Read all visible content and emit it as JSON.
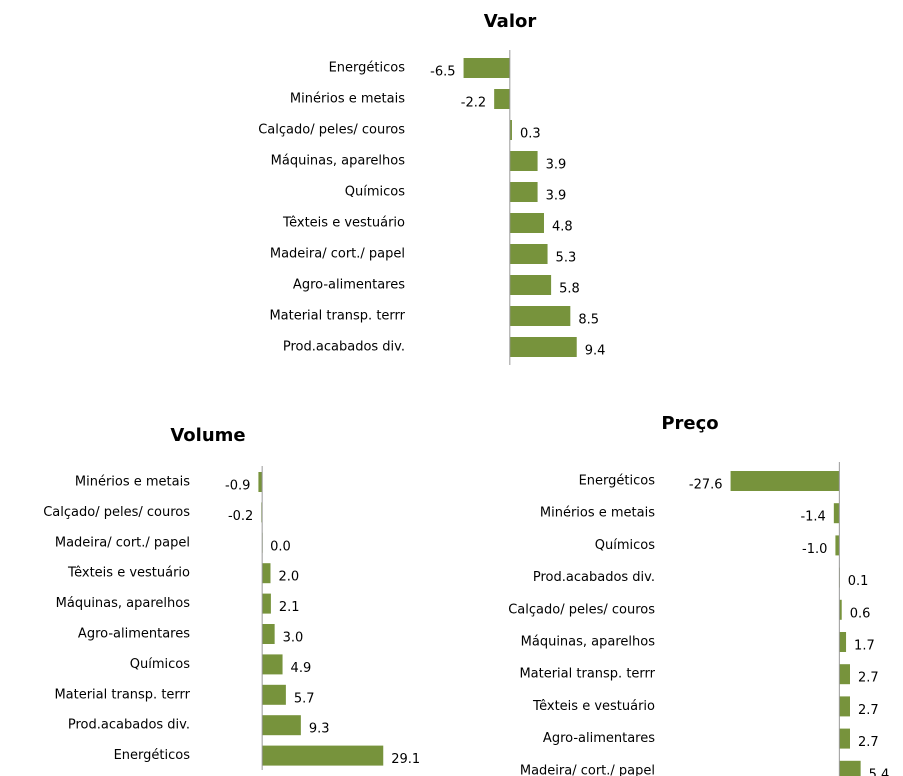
{
  "chart_data": [
    {
      "type": "bar",
      "orientation": "horizontal",
      "title": "Valor",
      "color": "#77933c",
      "categories": [
        "Energéticos",
        "Minérios e metais",
        "Calçado/ peles/ couros",
        "Máquinas, aparelhos",
        "Químicos",
        "Têxteis e vestuário",
        "Madeira/ cort./ papel",
        "Agro-alimentares",
        "Material transp. terrr",
        "Prod.acabados div."
      ],
      "values": [
        -6.5,
        -2.2,
        0.3,
        3.9,
        3.9,
        4.8,
        5.3,
        5.8,
        8.5,
        9.4
      ],
      "value_labels": [
        "-6.5",
        "-2.2",
        "0.3",
        "3.9",
        "3.9",
        "4.8",
        "5.3",
        "5.8",
        "8.5",
        "9.4"
      ],
      "xlim": [
        -7,
        10
      ]
    },
    {
      "type": "bar",
      "orientation": "horizontal",
      "title": "Volume",
      "color": "#77933c",
      "categories": [
        "Minérios e metais",
        "Calçado/ peles/ couros",
        "Madeira/ cort./ papel",
        "Têxteis e vestuário",
        "Máquinas, aparelhos",
        "Agro-alimentares",
        "Químicos",
        "Material transp. terrr",
        "Prod.acabados div.",
        "Energéticos"
      ],
      "values": [
        -0.9,
        -0.2,
        0.0,
        2.0,
        2.1,
        3.0,
        4.9,
        5.7,
        9.3,
        29.1
      ],
      "value_labels": [
        "-0.9",
        "-0.2",
        "0.0",
        "2.0",
        "2.1",
        "3.0",
        "4.9",
        "5.7",
        "9.3",
        "29.1"
      ],
      "xlim": [
        -1,
        30
      ]
    },
    {
      "type": "bar",
      "orientation": "horizontal",
      "title": "Preço",
      "color": "#77933c",
      "categories": [
        "Energéticos",
        "Minérios e metais",
        "Químicos",
        "Prod.acabados div.",
        "Calçado/ peles/ couros",
        "Máquinas, aparelhos",
        "Material transp. terrr",
        "Têxteis e vestuário",
        "Agro-alimentares",
        "Madeira/ cort./ papel"
      ],
      "values": [
        -27.6,
        -1.4,
        -1.0,
        0.1,
        0.6,
        1.7,
        2.7,
        2.7,
        2.7,
        5.4
      ],
      "value_labels": [
        "-27.6",
        "-1.4",
        "-1.0",
        "0.1",
        "0.6",
        "1.7",
        "2.7",
        "2.7",
        "2.7",
        "5.4"
      ],
      "xlim": [
        -28,
        6
      ]
    }
  ]
}
